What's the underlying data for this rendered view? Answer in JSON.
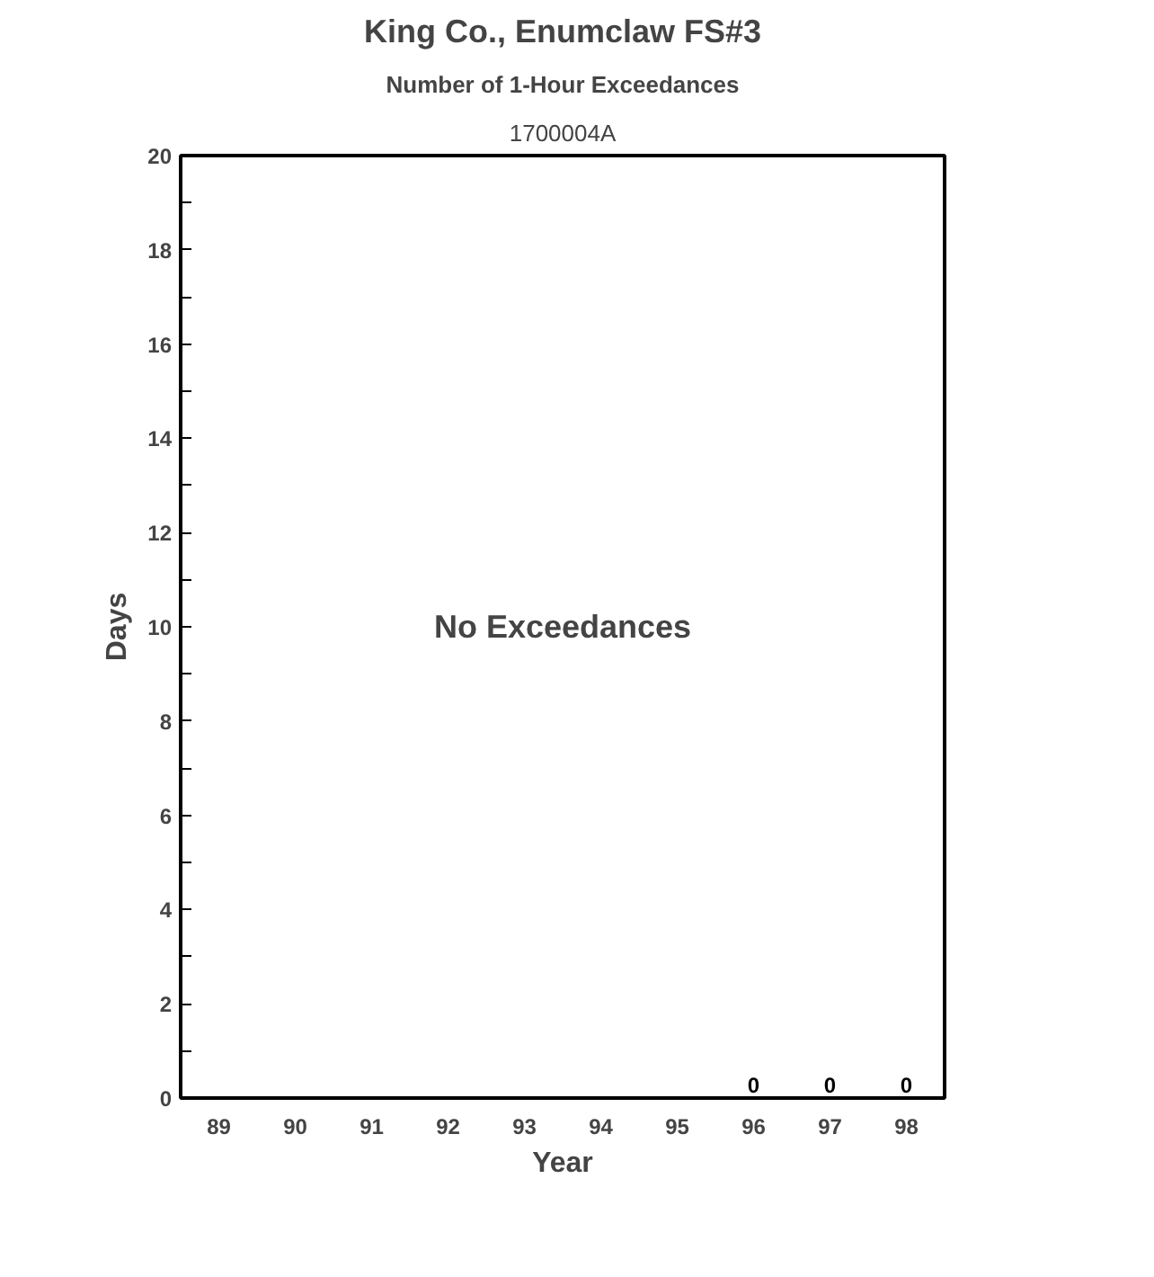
{
  "chart_data": {
    "type": "bar",
    "title": "King Co., Enumclaw FS#3",
    "subtitle": "Number of 1-Hour Exceedances",
    "xlabel": "Year",
    "ylabel": "Days",
    "annotations": [
      "1700004A",
      "No Exceedances"
    ],
    "categories": [
      "89",
      "90",
      "91",
      "92",
      "93",
      "94",
      "95",
      "96",
      "97",
      "98"
    ],
    "series": [
      {
        "values": [
          0,
          0,
          0,
          0,
          0,
          0,
          0,
          0,
          0,
          0
        ],
        "value_labels": [
          null,
          null,
          null,
          null,
          null,
          null,
          null,
          "0",
          "0",
          "0"
        ]
      }
    ],
    "ylim": [
      0,
      20
    ],
    "yticks": [
      0,
      {
        "value": 1,
        "label": null
      },
      2,
      {
        "value": 3,
        "label": null
      },
      4,
      {
        "value": 5,
        "label": null
      },
      6,
      {
        "value": 7,
        "label": null
      },
      8,
      {
        "value": 9,
        "label": null
      },
      10,
      {
        "value": 11,
        "label": null
      },
      12,
      {
        "value": 13,
        "label": null
      },
      14,
      {
        "value": 15,
        "label": null
      },
      16,
      {
        "value": 17,
        "label": null
      },
      18,
      {
        "value": 19,
        "label": null
      },
      20
    ],
    "grid": false
  }
}
